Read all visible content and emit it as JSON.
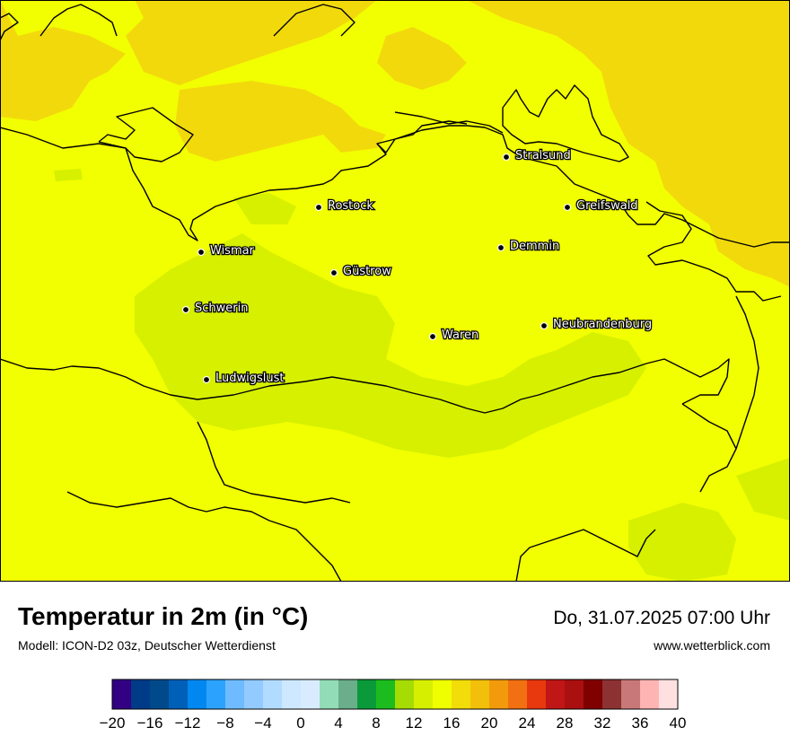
{
  "map": {
    "cities": [
      {
        "name": "Stralsund"
      },
      {
        "name": "Rostock"
      },
      {
        "name": "Greifswald"
      },
      {
        "name": "Demmin"
      },
      {
        "name": "Wismar"
      },
      {
        "name": "Güstrow"
      },
      {
        "name": "Schwerin"
      },
      {
        "name": "Neubrandenburg"
      },
      {
        "name": "Waren"
      },
      {
        "name": "Ludwigslust"
      }
    ],
    "colors": {
      "background": "#f2ff00",
      "warm_zone": "#f2d90c",
      "cool_zone": "#d6f000",
      "border": "#000000"
    }
  },
  "header": {
    "title": "Temperatur in 2m (in °C)",
    "subtitle": "Modell: ICON-D2 03z, Deutscher Wetterdienst",
    "datetime": "Do, 31.07.2025 07:00 Uhr",
    "website": "www.wetterblick.com"
  },
  "legend": {
    "tick_labels": [
      "−20",
      "−16",
      "−12",
      "−8",
      "−4",
      "0",
      "4",
      "8",
      "12",
      "16",
      "20",
      "24",
      "28",
      "32",
      "36",
      "40"
    ],
    "colors": [
      "#320083",
      "#003b87",
      "#004a8c",
      "#0060b8",
      "#0088f0",
      "#2ca2ff",
      "#6ebcff",
      "#93caff",
      "#b2dcff",
      "#cde8ff",
      "#d9ecff",
      "#93dcb8",
      "#6aae8c",
      "#0a9a3a",
      "#1cbc1e",
      "#a4dc04",
      "#d6ef00",
      "#f0ff00",
      "#f2dc0a",
      "#f2c00a",
      "#f29a0c",
      "#f07012",
      "#e8380e",
      "#c01616",
      "#aa1010",
      "#800000",
      "#8c3232",
      "#c87878",
      "#ffb4b4",
      "#ffe0e0"
    ]
  }
}
